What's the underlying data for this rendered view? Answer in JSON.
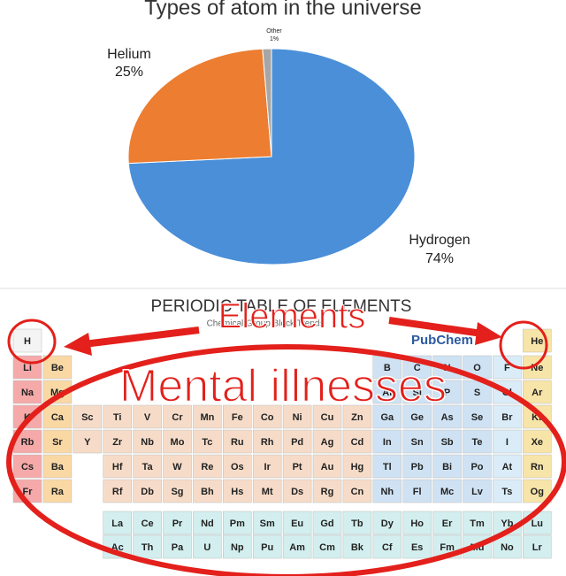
{
  "chart_data": {
    "type": "pie",
    "title": "Types of atom in the universe",
    "categories": [
      "Hydrogen",
      "Helium",
      "Other"
    ],
    "values": [
      74,
      25,
      1
    ],
    "value_labels": [
      "74%",
      "25%",
      "1%"
    ],
    "colors": [
      "#4a8fd8",
      "#ec7d31",
      "#a6a6a6"
    ]
  },
  "periodic_table": {
    "title": "PERIODIC TABLE OF ELEMENTS",
    "subtitle": "Chemical Group Block Trends",
    "source": "PubChem",
    "elements": [
      "H",
      "He",
      "Li",
      "Be",
      "B",
      "C",
      "N",
      "O",
      "F",
      "Ne",
      "Na",
      "Mg",
      "Al",
      "Si",
      "P",
      "S",
      "Cl",
      "Ar",
      "K",
      "Ca",
      "Sc",
      "Ti",
      "V",
      "Cr",
      "Mn",
      "Fe",
      "Co",
      "Ni",
      "Cu",
      "Zn",
      "Ga",
      "Ge",
      "As",
      "Se",
      "Br",
      "Kr",
      "Rb",
      "Sr",
      "Y",
      "Zr",
      "Nb",
      "Mo",
      "Tc",
      "Ru",
      "Rh",
      "Pd",
      "Ag",
      "Cd",
      "In",
      "Sn",
      "Sb",
      "Te",
      "I",
      "Xe",
      "Cs",
      "Ba",
      "La",
      "Ce",
      "Pr",
      "Nd",
      "Pm",
      "Sm",
      "Eu",
      "Gd",
      "Tb",
      "Dy",
      "Ho",
      "Er",
      "Tm",
      "Yb",
      "Lu",
      "Hf",
      "Ta",
      "W",
      "Re",
      "Os",
      "Ir",
      "Pt",
      "Au",
      "Hg",
      "Tl",
      "Pb",
      "Bi",
      "Po",
      "At",
      "Rn",
      "Fr",
      "Ra",
      "Ac",
      "Th",
      "Pa",
      "U",
      "Np",
      "Pu",
      "Am",
      "Cm",
      "Bk",
      "Cf",
      "Es",
      "Fm",
      "Md",
      "No",
      "Lr",
      "Rf",
      "Db",
      "Sg",
      "Bh",
      "Hs",
      "Mt",
      "Ds",
      "Rg",
      "Cn",
      "Nh",
      "Fl",
      "Mc",
      "Lv",
      "Ts",
      "Og"
    ]
  },
  "meme": {
    "top_label": "Elements",
    "bottom_label": "Mental illnesses"
  }
}
